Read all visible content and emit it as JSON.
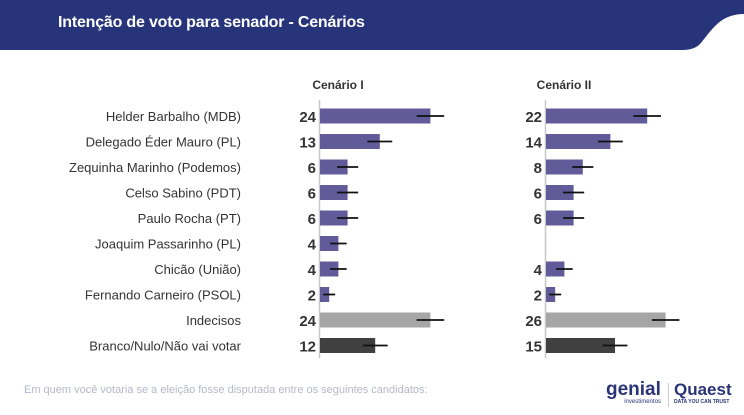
{
  "header": {
    "title": "Intenção de voto para senador - Cenários",
    "color": "#27347a"
  },
  "footer": {
    "question": "Em quem você votaria se a eleição fosse disputada entre os seguintes candidatos:"
  },
  "logos": {
    "genial": "genial",
    "genial_sub": "investimentos",
    "quaest": "Quaest",
    "quaest_sub": "DATA YOU CAN TRUST"
  },
  "chart_data": {
    "type": "bar",
    "orientation": "horizontal",
    "categories": [
      "Helder Barbalho (MDB)",
      "Delegado Éder Mauro (PL)",
      "Zequinha Marinho (Podemos)",
      "Celso Sabino (PDT)",
      "Paulo Rocha (PT)",
      "Joaquim Passarinho (PL)",
      "Chicão (União)",
      "Fernando Carneiro (PSOL)",
      "Indecisos",
      "Branco/Nulo/Não vai votar"
    ],
    "series": [
      {
        "name": "Cenário I",
        "values": [
          24,
          13,
          6,
          6,
          6,
          4,
          4,
          2,
          24,
          12
        ]
      },
      {
        "name": "Cenário II",
        "values": [
          22,
          14,
          8,
          6,
          6,
          null,
          4,
          2,
          26,
          15
        ]
      }
    ],
    "error_bars": "approx. ±3 pp",
    "colors": {
      "candidate": "#615c99",
      "undecided": "#a6a6a6",
      "blank": "#404040",
      "error": "#111111"
    },
    "xlim": [
      0,
      30
    ],
    "grid": false,
    "legend": "none"
  }
}
